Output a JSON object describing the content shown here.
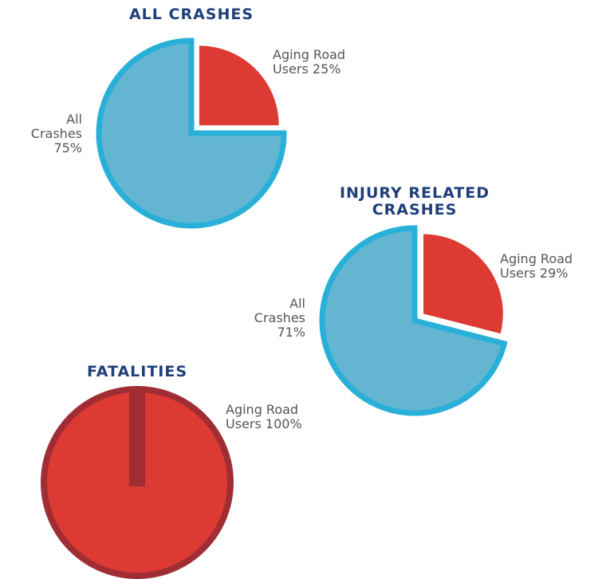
{
  "chart_data": [
    {
      "type": "pie",
      "title": "ALL CRASHES",
      "categories": [
        "Aging Road Users",
        "All Crashes"
      ],
      "values": [
        25,
        75
      ],
      "value_labels": [
        "25%",
        "75%"
      ],
      "colors": [
        "#dc3a33",
        "#63b5d2"
      ],
      "border_colors": [
        "#ffffff",
        "#29b0d8"
      ]
    },
    {
      "type": "pie",
      "title": "INJURY RELATED CRASHES",
      "categories": [
        "Aging Road Users",
        "All Crashes"
      ],
      "values": [
        29,
        71
      ],
      "value_labels": [
        "29%",
        "71%"
      ],
      "colors": [
        "#dc3a33",
        "#63b5d2"
      ],
      "border_colors": [
        "#ffffff",
        "#29b0d8"
      ]
    },
    {
      "type": "pie",
      "title": "FATALITIES",
      "categories": [
        "Aging Road Users"
      ],
      "values": [
        100
      ],
      "value_labels": [
        "100%"
      ],
      "colors": [
        "#dc3a33"
      ],
      "border_colors": [
        "#a12d34"
      ]
    }
  ]
}
